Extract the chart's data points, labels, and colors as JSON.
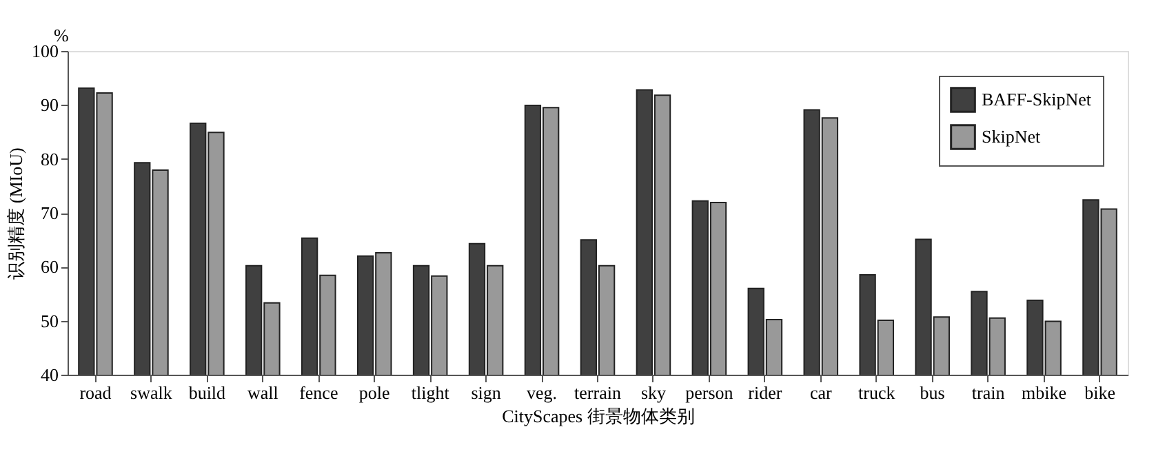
{
  "chart_data": {
    "type": "bar",
    "xlabel": "CityScapes 街景物体类别",
    "ylabel": "识别精度 (MIoU)",
    "annotations": [
      "%"
    ],
    "categories": [
      "road",
      "swalk",
      "build",
      "wall",
      "fence",
      "pole",
      "tlight",
      "sign",
      "veg.",
      "terrain",
      "sky",
      "person",
      "rider",
      "car",
      "truck",
      "bus",
      "train",
      "mbike",
      "bike"
    ],
    "series": [
      {
        "name": "BAFF-SkipNet",
        "color": "#404040",
        "values": [
          93.1,
          79.3,
          86.6,
          60.2,
          65.3,
          62.0,
          60.2,
          64.3,
          89.9,
          65.0,
          92.8,
          72.2,
          56.0,
          89.1,
          58.5,
          65.1,
          55.4,
          53.8,
          72.4
        ]
      },
      {
        "name": "SkipNet",
        "color": "#999999",
        "values": [
          92.2,
          77.9,
          84.9,
          53.3,
          58.4,
          62.6,
          58.3,
          60.2,
          89.5,
          60.2,
          91.8,
          71.9,
          50.2,
          87.6,
          50.1,
          50.7,
          50.5,
          49.9,
          70.7
        ]
      }
    ],
    "ylim": [
      40,
      100
    ],
    "yticks": [
      40,
      50,
      60,
      70,
      80,
      90,
      100
    ],
    "grid": false,
    "legend": "top right"
  }
}
